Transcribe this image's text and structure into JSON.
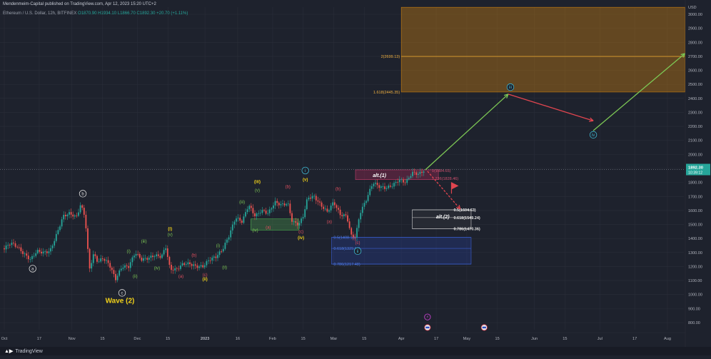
{
  "header": {
    "published": "Mendenmeim-Capital published on TradingView.com, Apr 12, 2023 15:20 UTC+2",
    "symbol": "Ethereum / U.S. Dollar, 12h, BITFINEX",
    "ohlc": "O1870.90 H1934.10 L1866.70 C1892.30 +20.70 (+1.11%)"
  },
  "footer": {
    "brand": "TradingView"
  },
  "colors": {
    "background": "#1e222d",
    "up": "#26a69a",
    "down": "#ef5350",
    "green_arrow": "#7dc855",
    "red_arrow": "#e0454f",
    "gold_zone": "#c47d10",
    "blue_zone": "#2f4fb0",
    "label_yellow": "#f0d01a"
  },
  "chart_data": {
    "type": "candlestick",
    "currency_label": "USD",
    "ylim": [
      720,
      3060
    ],
    "yticks": [
      800,
      900,
      1000,
      1100,
      1200,
      1300,
      1400,
      1500,
      1600,
      1700,
      1800,
      1900,
      2000,
      2100,
      2200,
      2300,
      2400,
      2500,
      2600,
      2700,
      2800,
      2900,
      3000
    ],
    "x_tick_labels": [
      {
        "label": "Oct",
        "date": "2022-10-01",
        "bold": false
      },
      {
        "label": "17",
        "date": "2022-10-17",
        "bold": false
      },
      {
        "label": "Nov",
        "date": "2022-11-01",
        "bold": false
      },
      {
        "label": "15",
        "date": "2022-11-15",
        "bold": false
      },
      {
        "label": "Dec",
        "date": "2022-12-01",
        "bold": false
      },
      {
        "label": "15",
        "date": "2022-12-15",
        "bold": false
      },
      {
        "label": "2023",
        "date": "2023-01-01",
        "bold": true
      },
      {
        "label": "16",
        "date": "2023-01-16",
        "bold": false
      },
      {
        "label": "Feb",
        "date": "2023-02-01",
        "bold": false
      },
      {
        "label": "15",
        "date": "2023-02-15",
        "bold": false
      },
      {
        "label": "Mar",
        "date": "2023-03-01",
        "bold": false
      },
      {
        "label": "15",
        "date": "2023-03-15",
        "bold": false
      },
      {
        "label": "Apr",
        "date": "2023-04-01",
        "bold": false
      },
      {
        "label": "17",
        "date": "2023-04-17",
        "bold": false
      },
      {
        "label": "May",
        "date": "2023-05-01",
        "bold": false
      },
      {
        "label": "15",
        "date": "2023-05-15",
        "bold": false
      },
      {
        "label": "Jun",
        "date": "2023-06-01",
        "bold": false
      },
      {
        "label": "15",
        "date": "2023-06-15",
        "bold": false
      },
      {
        "label": "Jul",
        "date": "2023-07-01",
        "bold": false
      },
      {
        "label": "17",
        "date": "2023-07-17",
        "bold": false
      },
      {
        "label": "Aug",
        "date": "2023-08-01",
        "bold": false
      }
    ],
    "last_price": {
      "value": 1892.3,
      "label": "1892.30",
      "countdown": "10:39:12"
    },
    "price_path": [
      [
        "2022-10-01",
        1330
      ],
      [
        "2022-10-04",
        1370
      ],
      [
        "2022-10-07",
        1340
      ],
      [
        "2022-10-10",
        1290
      ],
      [
        "2022-10-13",
        1250
      ],
      [
        "2022-10-16",
        1310
      ],
      [
        "2022-10-19",
        1300
      ],
      [
        "2022-10-22",
        1310
      ],
      [
        "2022-10-25",
        1430
      ],
      [
        "2022-10-28",
        1560
      ],
      [
        "2022-10-31",
        1580
      ],
      [
        "2022-11-03",
        1550
      ],
      [
        "2022-11-05",
        1640
      ],
      [
        "2022-11-07",
        1560
      ],
      [
        "2022-11-09",
        1180
      ],
      [
        "2022-11-11",
        1290
      ],
      [
        "2022-11-13",
        1230
      ],
      [
        "2022-11-15",
        1260
      ],
      [
        "2022-11-18",
        1220
      ],
      [
        "2022-11-21",
        1110
      ],
      [
        "2022-11-24",
        1200
      ],
      [
        "2022-11-27",
        1200
      ],
      [
        "2022-11-30",
        1300
      ],
      [
        "2022-12-03",
        1250
      ],
      [
        "2022-12-06",
        1260
      ],
      [
        "2022-12-09",
        1280
      ],
      [
        "2022-12-12",
        1270
      ],
      [
        "2022-12-14",
        1340
      ],
      [
        "2022-12-16",
        1180
      ],
      [
        "2022-12-19",
        1180
      ],
      [
        "2022-12-22",
        1220
      ],
      [
        "2022-12-25",
        1220
      ],
      [
        "2022-12-28",
        1200
      ],
      [
        "2022-12-31",
        1200
      ],
      [
        "2023-01-03",
        1250
      ],
      [
        "2023-01-06",
        1270
      ],
      [
        "2023-01-09",
        1320
      ],
      [
        "2023-01-12",
        1420
      ],
      [
        "2023-01-15",
        1550
      ],
      [
        "2023-01-18",
        1520
      ],
      [
        "2023-01-21",
        1640
      ],
      [
        "2023-01-24",
        1560
      ],
      [
        "2023-01-27",
        1600
      ],
      [
        "2023-01-30",
        1580
      ],
      [
        "2023-02-02",
        1660
      ],
      [
        "2023-02-05",
        1640
      ],
      [
        "2023-02-08",
        1650
      ],
      [
        "2023-02-10",
        1520
      ],
      [
        "2023-02-13",
        1500
      ],
      [
        "2023-02-15",
        1560
      ],
      [
        "2023-02-17",
        1690
      ],
      [
        "2023-02-20",
        1700
      ],
      [
        "2023-02-23",
        1640
      ],
      [
        "2023-02-26",
        1590
      ],
      [
        "2023-03-01",
        1660
      ],
      [
        "2023-03-04",
        1570
      ],
      [
        "2023-03-07",
        1560
      ],
      [
        "2023-03-09",
        1420
      ],
      [
        "2023-03-11",
        1410
      ],
      [
        "2023-03-13",
        1580
      ],
      [
        "2023-03-16",
        1680
      ],
      [
        "2023-03-19",
        1800
      ],
      [
        "2023-03-22",
        1770
      ],
      [
        "2023-03-25",
        1760
      ],
      [
        "2023-03-28",
        1780
      ],
      [
        "2023-03-31",
        1820
      ],
      [
        "2023-04-03",
        1800
      ],
      [
        "2023-04-06",
        1870
      ],
      [
        "2023-04-09",
        1860
      ],
      [
        "2023-04-12",
        1892
      ]
    ],
    "zones": [
      {
        "date_start": "2023-04-01",
        "date_end": "2023-08-09",
        "y_low": 2445.35,
        "y_high": 3050,
        "color": "gold",
        "label": "2(2699.13)",
        "label_value": 2699.13,
        "label2": "1.618(2445.35)",
        "label2_value": 2445.35
      },
      {
        "date_start": "2023-03-11",
        "date_end": "2023-04-18",
        "y_low": 1820,
        "y_high": 1890,
        "color": "maroon"
      },
      {
        "date_start": "2023-04-06",
        "date_end": "2023-05-03",
        "y_low": 1470.36,
        "y_high": 1604.63,
        "color": "grey"
      },
      {
        "date_start": "2023-02-28",
        "date_end": "2023-05-03",
        "y_low": 1217.48,
        "y_high": 1408.18,
        "color": "blue"
      },
      {
        "date_start": "2023-01-22",
        "date_end": "2023-02-13",
        "y_low": 1460,
        "y_high": 1540,
        "color": "green"
      }
    ],
    "fib_labels": [
      {
        "text": "1(1884.65)",
        "value": 1884.65,
        "color": "#d0506e"
      },
      {
        "text": "1.236(1828.46)",
        "value": 1828.46,
        "color": "#d0506e"
      },
      {
        "text": "0.5(1604.63)",
        "value": 1604.63,
        "color": "#e6e6e6"
      },
      {
        "text": "0.618(1549.24)",
        "value": 1549.24,
        "color": "#e6e6e6"
      },
      {
        "text": "0.786(1470.36)",
        "value": 1470.36,
        "color": "#e6e6e6"
      },
      {
        "text": "0.5(1408.18)",
        "value": 1408.18,
        "color": "#4f7be0"
      },
      {
        "text": "0.618(1329.54)",
        "value": 1329.54,
        "color": "#4f7be0"
      },
      {
        "text": "0.786(1217.48)",
        "value": 1217.48,
        "color": "#4f7be0"
      }
    ],
    "zone_titles": [
      {
        "text": "alt.(1)",
        "value": 1855
      },
      {
        "text": "alt.(2)",
        "value": 1560
      }
    ],
    "projection": [
      {
        "from": [
          "2023-04-12",
          1890
        ],
        "to": [
          "2023-05-20",
          2430
        ],
        "color": "green"
      },
      {
        "from": [
          "2023-05-20",
          2430
        ],
        "to": [
          "2023-06-28",
          2240
        ],
        "color": "red"
      },
      {
        "from": [
          "2023-06-28",
          2170
        ],
        "to": [
          "2023-08-09",
          2720
        ],
        "color": "green"
      },
      {
        "from": [
          "2023-04-13",
          1880
        ],
        "to": [
          "2023-04-28",
          1610
        ],
        "color": "red_dashed"
      }
    ],
    "wave_labels": [
      {
        "text": "a",
        "date": "2022-10-14",
        "value": 1185,
        "style": "circle-white"
      },
      {
        "text": "b",
        "date": "2022-11-06",
        "value": 1720,
        "style": "circle-white"
      },
      {
        "text": "c",
        "date": "2022-11-24",
        "value": 1012,
        "style": "circle-white"
      },
      {
        "text": "Wave (2)",
        "date": "2022-11-23",
        "value": 950,
        "style": "big-yellow"
      },
      {
        "text": "(i)",
        "date": "2022-11-27",
        "value": 1310,
        "style": "green"
      },
      {
        "text": "(ii)",
        "date": "2022-11-30",
        "value": 1130,
        "style": "green"
      },
      {
        "text": "(iii)",
        "date": "2022-12-04",
        "value": 1380,
        "style": "green"
      },
      {
        "text": "(iv)",
        "date": "2022-12-10",
        "value": 1190,
        "style": "green"
      },
      {
        "text": "(v)",
        "date": "2022-12-16",
        "value": 1430,
        "style": "green"
      },
      {
        "text": "(i)",
        "date": "2022-12-16",
        "value": 1470,
        "style": "yellow"
      },
      {
        "text": "(a)",
        "date": "2022-12-21",
        "value": 1130,
        "style": "red"
      },
      {
        "text": "(b)",
        "date": "2022-12-27",
        "value": 1280,
        "style": "red"
      },
      {
        "text": "(c)",
        "date": "2023-01-01",
        "value": 1140,
        "style": "red"
      },
      {
        "text": "(ii)",
        "date": "2023-01-01",
        "value": 1110,
        "style": "yellow"
      },
      {
        "text": "(i)",
        "date": "2023-01-07",
        "value": 1350,
        "style": "green"
      },
      {
        "text": "(ii)",
        "date": "2023-01-10",
        "value": 1195,
        "style": "green"
      },
      {
        "text": "(iii)",
        "date": "2023-01-18",
        "value": 1660,
        "style": "green"
      },
      {
        "text": "(iii)",
        "date": "2023-01-25",
        "value": 1805,
        "style": "yellow"
      },
      {
        "text": "(v)",
        "date": "2023-01-25",
        "value": 1745,
        "style": "green"
      },
      {
        "text": "(iv)",
        "date": "2023-01-24",
        "value": 1460,
        "style": "green"
      },
      {
        "text": "(a)",
        "date": "2023-01-30",
        "value": 1480,
        "style": "red"
      },
      {
        "text": "(b)",
        "date": "2023-02-08",
        "value": 1770,
        "style": "red"
      },
      {
        "text": "(c)",
        "date": "2023-02-14",
        "value": 1450,
        "style": "red"
      },
      {
        "text": "(iv)",
        "date": "2023-02-14",
        "value": 1405,
        "style": "yellow"
      },
      {
        "text": "i",
        "date": "2023-02-16",
        "value": 1885,
        "style": "circle-cyan"
      },
      {
        "text": "(v)",
        "date": "2023-02-16",
        "value": 1820,
        "style": "yellow"
      },
      {
        "text": "(b)",
        "date": "2023-03-03",
        "value": 1755,
        "style": "red"
      },
      {
        "text": "(a)",
        "date": "2023-02-27",
        "value": 1520,
        "style": "red"
      },
      {
        "text": "(c)",
        "date": "2023-03-12",
        "value": 1370,
        "style": "red"
      },
      {
        "text": "ii",
        "date": "2023-03-12",
        "value": 1310,
        "style": "circle-cyan"
      },
      {
        "text": "iii",
        "date": "2023-05-21",
        "value": 2480,
        "style": "circle-cyan"
      },
      {
        "text": "iv",
        "date": "2023-06-28",
        "value": 2140,
        "style": "circle-cyan"
      }
    ],
    "events": [
      {
        "date": "2023-04-13",
        "value": 765,
        "kind": "flag"
      },
      {
        "date": "2023-05-09",
        "value": 765,
        "kind": "flag"
      },
      {
        "date": "2023-04-13",
        "value": 840,
        "kind": "lightning"
      }
    ]
  }
}
